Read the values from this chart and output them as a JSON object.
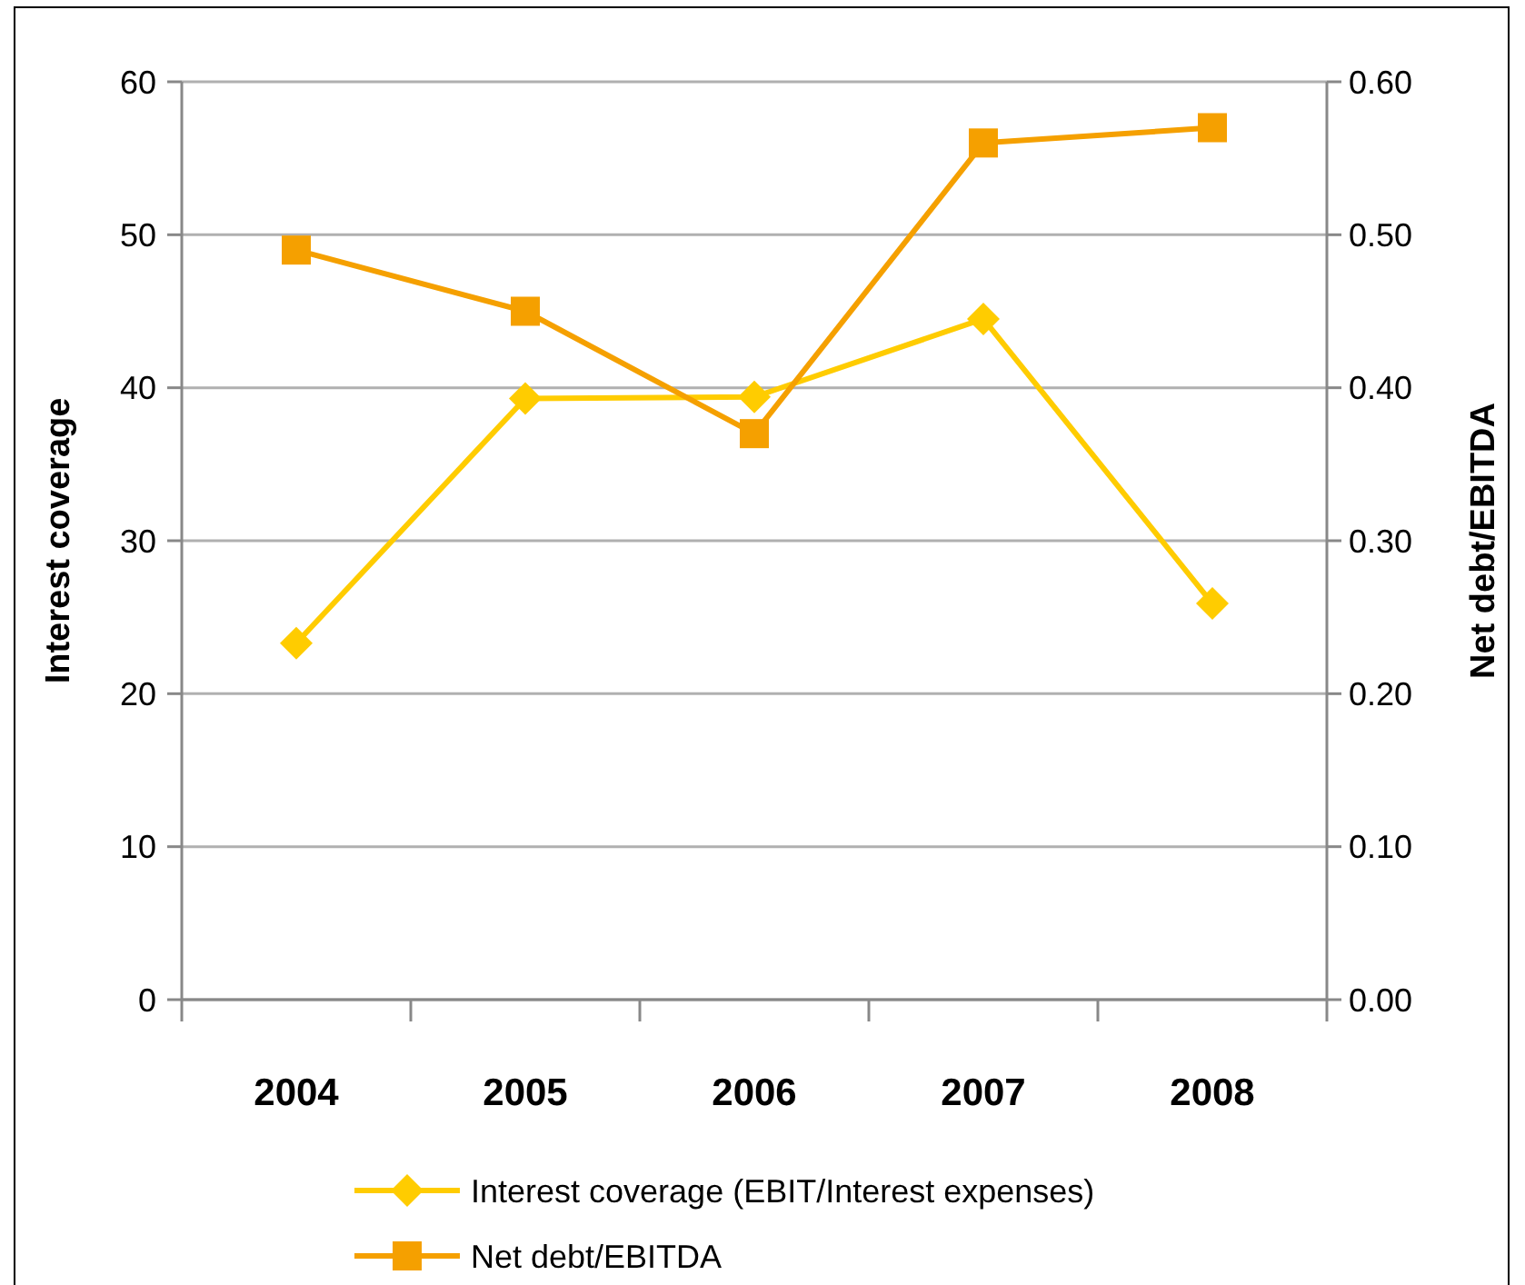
{
  "chart_data": {
    "type": "line",
    "categories": [
      "2004",
      "2005",
      "2006",
      "2007",
      "2008"
    ],
    "ylabel": "Interest coverage",
    "y2label": "Net debt/EBITDA",
    "series": [
      {
        "name": "Interest coverage (EBIT/Interest expenses)",
        "color": "#ffcc00",
        "marker": "diamond",
        "values": [
          23.3,
          39.3,
          39.4,
          44.5,
          25.9
        ]
      },
      {
        "name": "Net debt/EBITDA",
        "color": "#f5a000",
        "marker": "square",
        "axis": "y2",
        "values": [
          0.49,
          0.45,
          0.37,
          0.56,
          0.57
        ]
      }
    ],
    "ylim": [
      0,
      60
    ],
    "yticks": [
      0,
      10,
      20,
      30,
      40,
      50,
      60
    ],
    "y2lim": [
      0,
      0.6
    ],
    "y2ticks": [
      {
        "value": 0,
        "label": "0.00"
      },
      {
        "value": 0.1,
        "label": "0.10"
      },
      {
        "value": 0.2,
        "label": "0.20"
      },
      {
        "value": 0.3,
        "label": "0.30"
      },
      {
        "value": 0.4,
        "label": "0.40"
      },
      {
        "value": 0.5,
        "label": "0.50"
      },
      {
        "value": 0.6,
        "label": "0.60"
      }
    ],
    "grid": "y",
    "legend": "bottom"
  }
}
